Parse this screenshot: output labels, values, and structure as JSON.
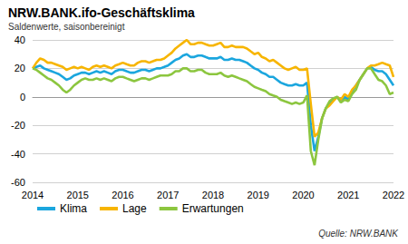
{
  "chart_data": {
    "type": "line",
    "title": "NRW.BANK.ifo-Geschäftsklima",
    "subtitle": "Saldenwerte, saisonbereinigt",
    "source": "Quelle: NRW.BANK",
    "x": [
      2014,
      2014.083,
      2014.167,
      2014.25,
      2014.333,
      2014.417,
      2014.5,
      2014.583,
      2014.667,
      2014.75,
      2014.833,
      2014.917,
      2015,
      2015.083,
      2015.167,
      2015.25,
      2015.333,
      2015.417,
      2015.5,
      2015.583,
      2015.667,
      2015.75,
      2015.833,
      2015.917,
      2016,
      2016.083,
      2016.167,
      2016.25,
      2016.333,
      2016.417,
      2016.5,
      2016.583,
      2016.667,
      2016.75,
      2016.833,
      2016.917,
      2017,
      2017.083,
      2017.167,
      2017.25,
      2017.333,
      2017.417,
      2017.5,
      2017.583,
      2017.667,
      2017.75,
      2017.833,
      2017.917,
      2018,
      2018.083,
      2018.167,
      2018.25,
      2018.333,
      2018.417,
      2018.5,
      2018.583,
      2018.667,
      2018.75,
      2018.833,
      2018.917,
      2019,
      2019.083,
      2019.167,
      2019.25,
      2019.333,
      2019.417,
      2019.5,
      2019.583,
      2019.667,
      2019.75,
      2019.833,
      2019.917,
      2020,
      2020.083,
      2020.167,
      2020.25,
      2020.333,
      2020.417,
      2020.5,
      2020.583,
      2020.667,
      2020.75,
      2020.833,
      2020.917,
      2021,
      2021.083,
      2021.167,
      2021.25,
      2021.333,
      2021.417,
      2021.5,
      2021.583,
      2021.667,
      2021.75,
      2021.833,
      2021.917,
      2022
    ],
    "xlim": [
      2014,
      2022
    ],
    "xticks": [
      2014,
      2015,
      2016,
      2017,
      2018,
      2019,
      2020,
      2021,
      2022
    ],
    "ylim": [
      -60,
      40
    ],
    "yticks": [
      -60,
      -40,
      -20,
      0,
      20,
      40
    ],
    "grid": true,
    "legend": "bottom-left",
    "series": [
      {
        "name": "Klima",
        "color": "#1ba6de",
        "values": [
          20,
          21,
          22,
          20,
          19,
          18,
          17,
          16,
          14,
          12,
          13,
          15,
          16,
          17,
          17,
          16,
          17,
          18,
          17,
          18,
          17,
          16,
          18,
          19,
          19,
          18,
          17,
          17,
          18,
          19,
          19,
          18,
          19,
          20,
          20,
          21,
          22,
          24,
          26,
          27,
          29,
          30,
          28,
          28,
          29,
          29,
          28,
          27,
          27,
          27,
          28,
          26,
          26,
          27,
          26,
          26,
          25,
          24,
          22,
          20,
          19,
          17,
          16,
          14,
          14,
          12,
          10,
          9,
          8,
          8,
          9,
          8,
          8,
          10,
          -20,
          -38,
          -28,
          -15,
          -8,
          -5,
          -2,
          0,
          -3,
          0,
          -2,
          4,
          8,
          12,
          16,
          20,
          21,
          19,
          18,
          18,
          16,
          12,
          8
        ]
      },
      {
        "name": "Lage",
        "color": "#f7b500",
        "values": [
          20,
          24,
          27,
          26,
          24,
          24,
          23,
          22,
          21,
          19,
          20,
          21,
          20,
          21,
          20,
          19,
          21,
          22,
          21,
          22,
          21,
          20,
          22,
          23,
          24,
          23,
          22,
          22,
          24,
          25,
          25,
          24,
          25,
          26,
          26,
          27,
          29,
          31,
          34,
          36,
          38,
          40,
          37,
          37,
          38,
          38,
          37,
          36,
          36,
          37,
          38,
          35,
          35,
          36,
          35,
          35,
          35,
          34,
          32,
          30,
          31,
          28,
          27,
          25,
          26,
          24,
          22,
          20,
          19,
          20,
          21,
          19,
          19,
          20,
          -5,
          -28,
          -25,
          -15,
          -8,
          -6,
          -3,
          0,
          -2,
          2,
          0,
          5,
          8,
          12,
          16,
          20,
          22,
          22,
          23,
          24,
          23,
          22,
          14
        ]
      },
      {
        "name": "Erwartungen",
        "color": "#8cc63f",
        "values": [
          20,
          19,
          17,
          15,
          13,
          12,
          10,
          8,
          5,
          3,
          5,
          8,
          10,
          12,
          13,
          12,
          12,
          13,
          12,
          13,
          12,
          11,
          13,
          14,
          14,
          13,
          12,
          11,
          12,
          13,
          13,
          12,
          13,
          14,
          15,
          15,
          15,
          16,
          18,
          18,
          20,
          20,
          18,
          18,
          19,
          19,
          17,
          16,
          16,
          16,
          17,
          15,
          14,
          15,
          14,
          13,
          12,
          11,
          9,
          7,
          6,
          5,
          4,
          2,
          1,
          0,
          -2,
          -3,
          -4,
          -5,
          -4,
          -5,
          -4,
          1,
          -38,
          -48,
          -30,
          -15,
          -8,
          -3,
          -1,
          0,
          -4,
          -2,
          -3,
          2,
          5,
          12,
          16,
          20,
          20,
          16,
          12,
          11,
          8,
          2,
          3
        ]
      }
    ]
  }
}
